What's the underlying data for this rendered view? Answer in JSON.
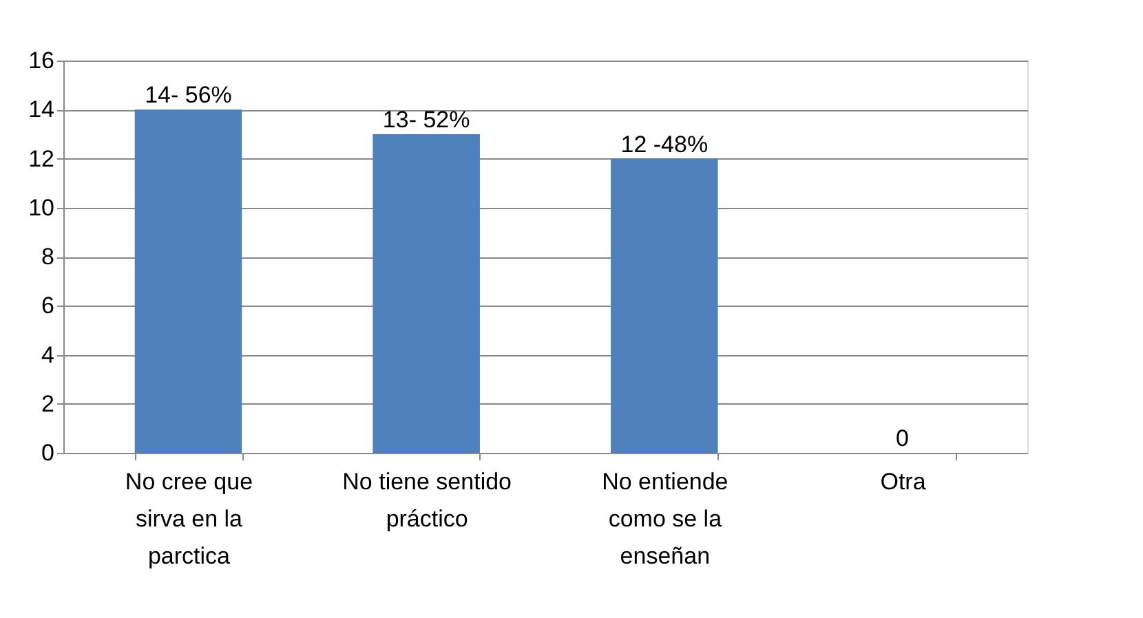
{
  "chart_data": {
    "type": "bar",
    "categories": [
      "No cree que\nsirva en la\nparctica",
      "No tiene sentido\npráctico",
      "No entiende\ncomo se la\nenseñan",
      "Otra"
    ],
    "values": [
      14,
      13,
      12,
      0
    ],
    "value_labels": [
      "14- 56%",
      "13- 52%",
      "12 -48%",
      "0"
    ],
    "color": "#4f81bd",
    "ylim": [
      0,
      16
    ],
    "yticks": [
      0,
      2,
      4,
      6,
      8,
      10,
      12,
      14,
      16
    ],
    "grid": "y"
  }
}
